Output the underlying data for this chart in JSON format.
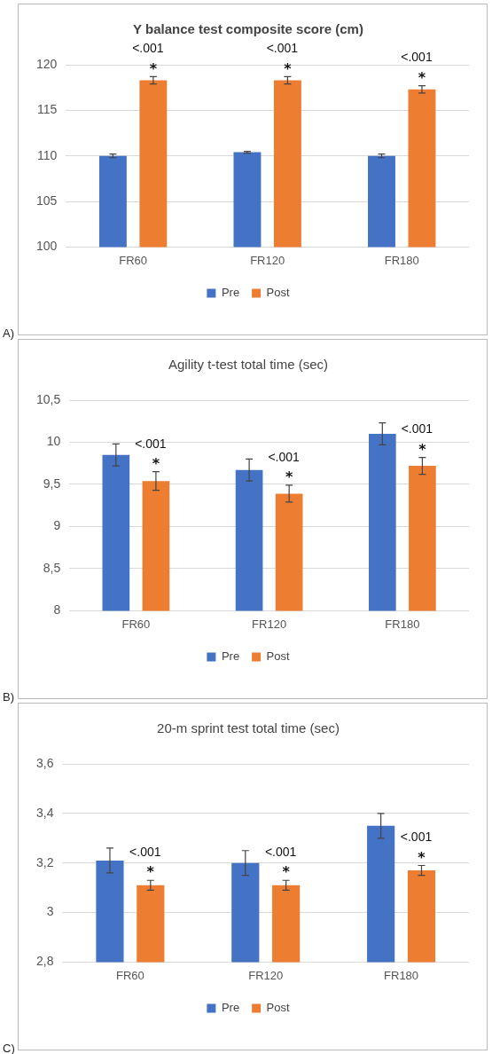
{
  "chart_data": [
    {
      "type": "bar",
      "title": "Y balance test composite score (cm)",
      "categories": [
        "FR60",
        "FR120",
        "FR180"
      ],
      "series": [
        {
          "name": "Pre",
          "color": "#4472c4",
          "values": [
            110.0,
            110.4,
            110.0
          ],
          "errors": [
            0.2,
            0.1,
            0.2
          ]
        },
        {
          "name": "Post",
          "color": "#ed7d31",
          "values": [
            118.3,
            118.3,
            117.3
          ],
          "errors": [
            0.4,
            0.4,
            0.4
          ]
        }
      ],
      "ylim": [
        100,
        120
      ],
      "yticks": [
        100,
        105,
        110,
        115,
        120
      ],
      "grid": "y",
      "legend": "bottom",
      "annotations": [
        "*",
        "<.001",
        "*",
        "<.001",
        "*",
        "<.001",
        "A)"
      ]
    },
    {
      "type": "bar",
      "title": "Agility t-test total time (sec)",
      "categories": [
        "FR60",
        "FR120",
        "FR180"
      ],
      "series": [
        {
          "name": "Pre",
          "color": "#4472c4",
          "values": [
            9.85,
            9.67,
            10.1
          ],
          "errors": [
            0.13,
            0.13,
            0.13
          ]
        },
        {
          "name": "Post",
          "color": "#ed7d31",
          "values": [
            9.54,
            9.39,
            9.72
          ],
          "errors": [
            0.11,
            0.1,
            0.1
          ]
        }
      ],
      "ylim": [
        8,
        10.5
      ],
      "yticks": [
        8,
        {
          "value": 8.5,
          "label": "8,5"
        },
        9,
        {
          "value": 9.5,
          "label": "9,5"
        },
        10,
        {
          "value": 10.5,
          "label": "10,5"
        }
      ],
      "grid": "y",
      "legend": "bottom",
      "annotations": [
        "*",
        "<.001",
        "*",
        "<.001",
        "*",
        "<.001",
        "B)"
      ]
    },
    {
      "type": "bar",
      "title": "20-m sprint test total time (sec)",
      "categories": [
        "FR60",
        "FR120",
        "FR180"
      ],
      "series": [
        {
          "name": "Pre",
          "color": "#4472c4",
          "values": [
            3.21,
            3.2,
            3.35
          ],
          "errors": [
            0.05,
            0.05,
            0.05
          ]
        },
        {
          "name": "Post",
          "color": "#ed7d31",
          "values": [
            3.11,
            3.11,
            3.17
          ],
          "errors": [
            0.02,
            0.02,
            0.02
          ]
        }
      ],
      "ylim": [
        2.8,
        3.6
      ],
      "yticks": [
        {
          "value": 2.8,
          "label": "2,8"
        },
        3,
        {
          "value": 3.2,
          "label": "3,2"
        },
        {
          "value": 3.4,
          "label": "3,4"
        },
        {
          "value": 3.6,
          "label": "3,6"
        }
      ],
      "grid": "y",
      "legend": "bottom",
      "annotations": [
        "*",
        "<.001",
        "*",
        "<.001",
        "*",
        "<.001",
        "C)"
      ]
    }
  ]
}
